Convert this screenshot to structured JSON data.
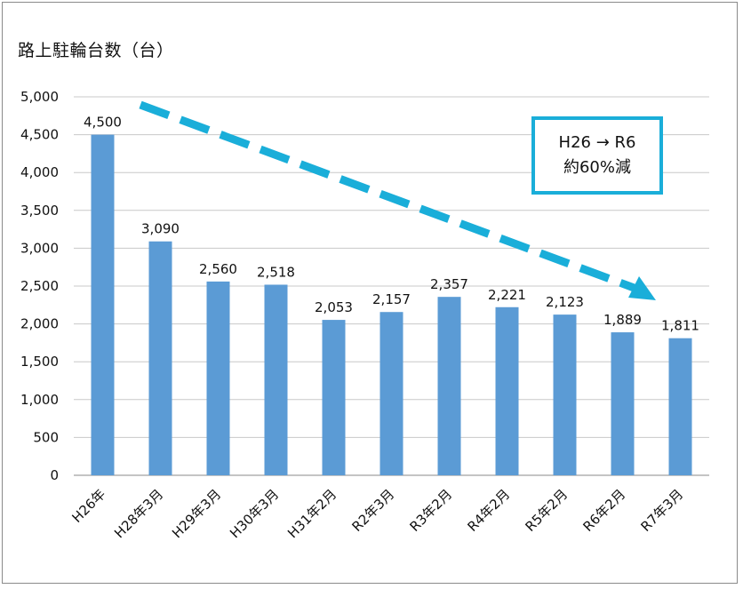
{
  "chart_data": {
    "type": "bar",
    "ylabel": "路上駐輪台数（台）",
    "categories": [
      "H26年",
      "H28年3月",
      "H29年3月",
      "H30年3月",
      "H31年2月",
      "R2年3月",
      "R3年2月",
      "R4年2月",
      "R5年2月",
      "R6年2月",
      "R7年3月"
    ],
    "values": [
      4500,
      3090,
      2560,
      2518,
      2053,
      2157,
      2357,
      2221,
      2123,
      1889,
      1811
    ],
    "data_labels": [
      "4,500",
      "3,090",
      "2,560",
      "2,518",
      "2,053",
      "2,157",
      "2,357",
      "2,221",
      "2,123",
      "1,889",
      "1,811"
    ],
    "ylim": [
      0,
      5000
    ],
    "yticks": [
      0,
      500,
      1000,
      1500,
      2000,
      2500,
      3000,
      3500,
      4000,
      4500,
      5000
    ],
    "ytick_labels": [
      "0",
      "500",
      "1,000",
      "1,500",
      "2,000",
      "2,500",
      "3,000",
      "3,500",
      "4,000",
      "4,500",
      "5,000"
    ],
    "grid": true,
    "bar_color": "#5b9bd5",
    "arrow_color": "#1aaed9",
    "annotation": {
      "line1": "H26 → R6",
      "line2": "約60%減"
    }
  }
}
